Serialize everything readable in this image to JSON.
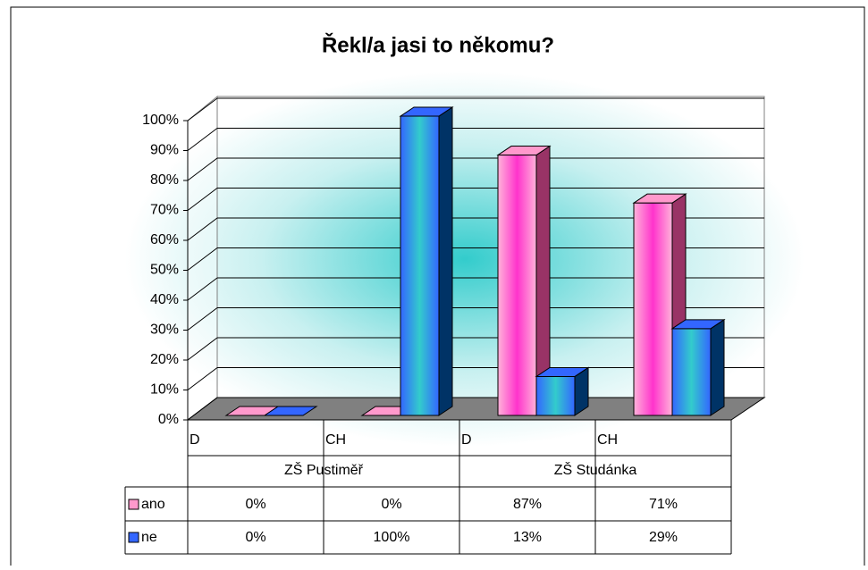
{
  "chart_data": {
    "type": "bar3d",
    "title": "Řekl/a jasi to někomu?",
    "categories": [
      "D",
      "CH",
      "D",
      "CH"
    ],
    "groups": [
      {
        "name": "ZŠ Pustiměř",
        "span": 2
      },
      {
        "name": "ZŠ Studánka",
        "span": 2
      }
    ],
    "series": [
      {
        "name": "ano",
        "color": "#ff99cc",
        "values": [
          0,
          0,
          87,
          71
        ],
        "value_labels": [
          "0%",
          "0%",
          "87%",
          "71%"
        ]
      },
      {
        "name": "ne",
        "color": "#3366ff",
        "values": [
          0,
          100,
          13,
          29
        ],
        "value_labels": [
          "0%",
          "100%",
          "13%",
          "29%"
        ]
      }
    ],
    "ylim": [
      0,
      100
    ],
    "yticks": [
      {
        "value": 0,
        "label": "0%"
      },
      {
        "value": 10,
        "label": "10%"
      },
      {
        "value": 20,
        "label": "20%"
      },
      {
        "value": 30,
        "label": "30%"
      },
      {
        "value": 40,
        "label": "40%"
      },
      {
        "value": 50,
        "label": "50%"
      },
      {
        "value": 60,
        "label": "60%"
      },
      {
        "value": 70,
        "label": "70%"
      },
      {
        "value": 80,
        "label": "80%"
      },
      {
        "value": 90,
        "label": "90%"
      },
      {
        "value": 100,
        "label": "100%"
      }
    ],
    "grid": true,
    "data_table": true
  }
}
